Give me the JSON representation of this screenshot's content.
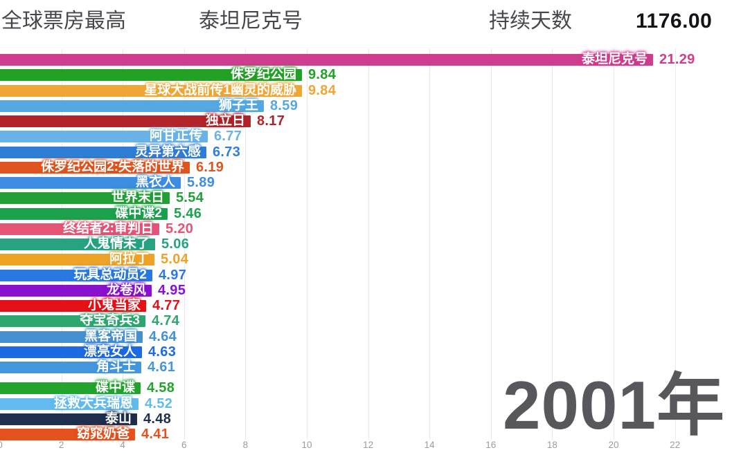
{
  "header": {
    "title": "全球票房最高",
    "leader_name": "泰坦尼克号",
    "duration_label": "持续天数",
    "duration_value": "1176.00"
  },
  "year_label": "2001年",
  "colors": {
    "grid": "#e9e9ec",
    "tick_text": "#9b9ba2",
    "header_text": "#46464c",
    "header_value": "#141418",
    "year_text": "#58585c"
  },
  "chart_data": {
    "type": "bar",
    "orientation": "horizontal",
    "title": "全球票房最高 (bar chart race frame)",
    "xlabel": "",
    "ylabel": "",
    "xlim": [
      0,
      23.8
    ],
    "x_ticks": [
      0,
      2,
      4,
      6,
      8,
      10,
      12,
      14,
      16,
      18,
      20,
      22
    ],
    "grid": true,
    "bars": [
      {
        "label": "泰坦尼克号",
        "value": 21.29,
        "color": "#cf3d8f"
      },
      {
        "label": "侏罗纪公园",
        "value": 9.84,
        "color": "#22a127"
      },
      {
        "label": "星球大战前传1幽灵的威胁",
        "value": 9.84,
        "color": "#f0a636"
      },
      {
        "label": "狮子王",
        "value": 8.59,
        "color": "#55a8e1"
      },
      {
        "label": "独立日",
        "value": 8.17,
        "color": "#b2232a"
      },
      {
        "label": "阿甘正传",
        "value": 6.77,
        "color": "#69b3e9"
      },
      {
        "label": "灵异第六感",
        "value": 6.73,
        "color": "#2e7ed6"
      },
      {
        "label": "侏罗纪公园2:失落的世界",
        "value": 6.19,
        "color": "#e0551f"
      },
      {
        "label": "黑衣人",
        "value": 5.89,
        "color": "#3d8de2"
      },
      {
        "label": "世界末日",
        "value": 5.54,
        "color": "#22a037"
      },
      {
        "label": "碟中谍2",
        "value": 5.46,
        "color": "#1ca14d"
      },
      {
        "label": "终结者2:审判日",
        "value": 5.2,
        "color": "#e65476"
      },
      {
        "label": "人鬼情未了",
        "value": 5.06,
        "color": "#27a382"
      },
      {
        "label": "阿拉丁",
        "value": 5.04,
        "color": "#eea226"
      },
      {
        "label": "玩具总动员2",
        "value": 4.97,
        "color": "#2a79e2"
      },
      {
        "label": "龙卷风",
        "value": 4.95,
        "color": "#8a11ce"
      },
      {
        "label": "小鬼当家",
        "value": 4.77,
        "color": "#e41218"
      },
      {
        "label": "夺宝奇兵3",
        "value": 4.74,
        "color": "#2ea76e"
      },
      {
        "label": "黑客帝国",
        "value": 4.64,
        "color": "#4590d1"
      },
      {
        "label": "漂亮女人",
        "value": 4.63,
        "color": "#1e6ae0"
      },
      {
        "label": "角斗士",
        "value": 4.61,
        "color": "#4496dd"
      },
      {
        "label": "碟中谍",
        "value": 4.58,
        "color": "#22a42d"
      },
      {
        "label": "拯救大兵瑞恩",
        "value": 4.52,
        "color": "#62baee"
      },
      {
        "label": "泰山",
        "value": 4.48,
        "color": "#1e2f4d"
      },
      {
        "label": "窈窕奶爸",
        "value": 4.41,
        "color": "#e4521e"
      }
    ]
  }
}
